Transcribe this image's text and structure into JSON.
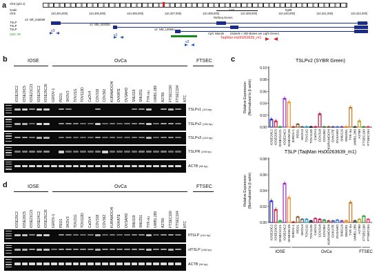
{
  "panel_a": {
    "letter": "a",
    "chrom": "chr5 (q22.1)",
    "scale_label": "Scale",
    "chr_label": "chr5:",
    "coords": [
      "110,404,000|",
      "110,405,000|",
      "110,406,000|",
      "110,407,000|",
      "110,408,000|",
      "110,409,000|",
      "110,440,000|",
      "110,441,000|",
      "110,442,000|"
    ],
    "scale_bar": "2 kb",
    "assembly": "hg38",
    "refseq_label": "RefSeq Genes",
    "v3_label": "v3: NR_045089",
    "v1_label": "v1: NM_033035",
    "v2_label": "v2: NM_138551",
    "track_labels": [
      "TSLP",
      "TSLP",
      "TSLP",
      "CpG: 29"
    ],
    "v3_short": "v3",
    "v1_short": "v1",
    "v2_short": "v2",
    "cpg_label": "CpG Islands",
    "base_note": "(Islands < 300 Bases are Light Green)",
    "taqman": "TaqMan Hs00263639_m1"
  },
  "panel_b": {
    "letter": "b",
    "groups": [
      "IOSE",
      "OvCa",
      "FTSEC"
    ],
    "lanes": [
      "IOSE20C2",
      "IOSE20C5",
      "IOSE21C21",
      "IOSE24C2",
      "IOSE25C26",
      "IGROV-1",
      "PEO1",
      "SKOV3",
      "TOV21G",
      "TOV112D",
      "CaOV4",
      "COV318",
      "COV362",
      "KURAMOCHI",
      "OVKATE",
      "OVSAHO",
      "SNU119",
      "SNU251",
      "TYK-nu",
      "UWB1.289",
      "A2780",
      "FTSEC190",
      "FTSEC194",
      "NTC"
    ],
    "rows": [
      {
        "name": "TSLPv1",
        "size": "(101bp)"
      },
      {
        "name": "TSLPv2",
        "size": "(136 bp)"
      },
      {
        "name": "TSLPv3",
        "size": "(139 bp)"
      },
      {
        "name": "TSLPR",
        "size": "(196 bp)"
      },
      {
        "name": "ACTB",
        "size": "(98 bp)"
      }
    ]
  },
  "panel_d": {
    "letter": "d",
    "groups": [
      "IOSE",
      "OvCa",
      "FTSEC"
    ],
    "lanes": [
      "IOSE20C2",
      "IOSE20C5",
      "IOSE21C21",
      "IOSE24C2",
      "IOSE25C26",
      "IGROV-1",
      "PEO1",
      "SKOV3",
      "TOV21G",
      "TOV112D",
      "CaOV4",
      "COV318",
      "COV362",
      "KURAMOCHI",
      "OVKATE",
      "OVSAHO",
      "SNU119",
      "SNU251",
      "TYK-nu",
      "UWB1.289",
      "A2780",
      "FTSEC190",
      "FTSEC194",
      "NTC"
    ],
    "rows": [
      {
        "name": "lfTSLP",
        "size": "(144 bp)"
      },
      {
        "name": "sfTSLP",
        "size": "(165 bp)"
      },
      {
        "name": "ACTB",
        "size": "(98 bp)"
      }
    ]
  },
  "panel_c": {
    "letter": "c",
    "chart_data": [
      {
        "type": "bar",
        "title": "TSLPv2 (SYBR Green)",
        "ylabel": "Relative Expression (Normalized to β-actin)",
        "ylim": [
          0,
          0.1
        ],
        "yticks": [
          "0.00",
          "0.02",
          "0.04",
          "0.06",
          "0.08",
          "0.10"
        ],
        "categories": [
          "IOSE20C2",
          "IOSE20C5",
          "IOSE21C21",
          "IOSE24C2",
          "IOSE25C26",
          "IGROV-1",
          "PEO1",
          "SKOV3",
          "TOV21G",
          "TOV112D",
          "CaOV4",
          "COV318",
          "COV362",
          "KURAMOCHI",
          "OVKATE",
          "OVSAHO",
          "SNU119",
          "SNU251",
          "TYK-nu",
          "UWB1.289",
          "A2780",
          "FTSEC190",
          "FTSEC194"
        ],
        "values": [
          0.013,
          0.01,
          0.0005,
          0.048,
          0.042,
          0.0005,
          0.005,
          0.0005,
          0.0005,
          0.0005,
          0.0005,
          0.022,
          0.0005,
          0.0005,
          0.0005,
          0.0005,
          0.0005,
          0.0005,
          0.033,
          0.0005,
          0.01,
          0.0005,
          0.0005
        ],
        "colors": [
          "#2b2bd9",
          "#e0102f",
          "#1faa3c",
          "#9b25c9",
          "#ff8c1a",
          "#c0392b",
          "#8b5a2b",
          "#666666",
          "#1a9ad9",
          "#222222",
          "#d81b60",
          "#c0163a",
          "#2e8b57",
          "#a0522d",
          "#5555aa",
          "#3a7bd5",
          "#8e44ad",
          "#ff7f0e",
          "#c8731f",
          "#444444",
          "#b8a11e",
          "#2ca02c",
          "#ff3366"
        ],
        "groups": [
          "IOSE",
          "OvCa",
          "FTSEC"
        ]
      },
      {
        "type": "bar",
        "title": "TSLP (TaqMan Hs00263639_m1)",
        "ylabel": "Relative Expression (Normalized to β-actin)",
        "ylim": [
          0,
          0.08
        ],
        "yticks": [
          "0.00",
          "0.02",
          "0.04",
          "0.06",
          "0.08"
        ],
        "categories": [
          "IOSE20C2",
          "IOSE20C5",
          "IOSE21C21",
          "IOSE24C2",
          "IOSE25C26",
          "IGROV-1",
          "PEO1",
          "SKOV3",
          "TOV21G",
          "TOV112D",
          "CaOV4",
          "COV318",
          "COV362",
          "KURAMOCHI",
          "OVKATE",
          "OVSAHO",
          "SNU119",
          "SNU251",
          "TYK-nu",
          "UWB1.289",
          "A2780",
          "FTSEC190",
          "FTSEC194"
        ],
        "values": [
          0.027,
          0.016,
          0.002,
          0.049,
          0.031,
          0.0005,
          0.007,
          0.004,
          0.004,
          0.002,
          0.005,
          0.004,
          0.003,
          0.002,
          0.002,
          0.003,
          0.002,
          0.002,
          0.025,
          0.002,
          0.004,
          0.008,
          0.004
        ],
        "colors": [
          "#2b2bd9",
          "#e0102f",
          "#1faa3c",
          "#9b25c9",
          "#ff8c1a",
          "#c0392b",
          "#8b5a2b",
          "#666666",
          "#1a9ad9",
          "#222222",
          "#d81b60",
          "#c0163a",
          "#2e8b57",
          "#a0522d",
          "#5555aa",
          "#3a7bd5",
          "#8e44ad",
          "#ff7f0e",
          "#c8731f",
          "#444444",
          "#b8a11e",
          "#2ca02c",
          "#ff3366"
        ],
        "groups": [
          "IOSE",
          "OvCa",
          "FTSEC"
        ]
      }
    ]
  }
}
